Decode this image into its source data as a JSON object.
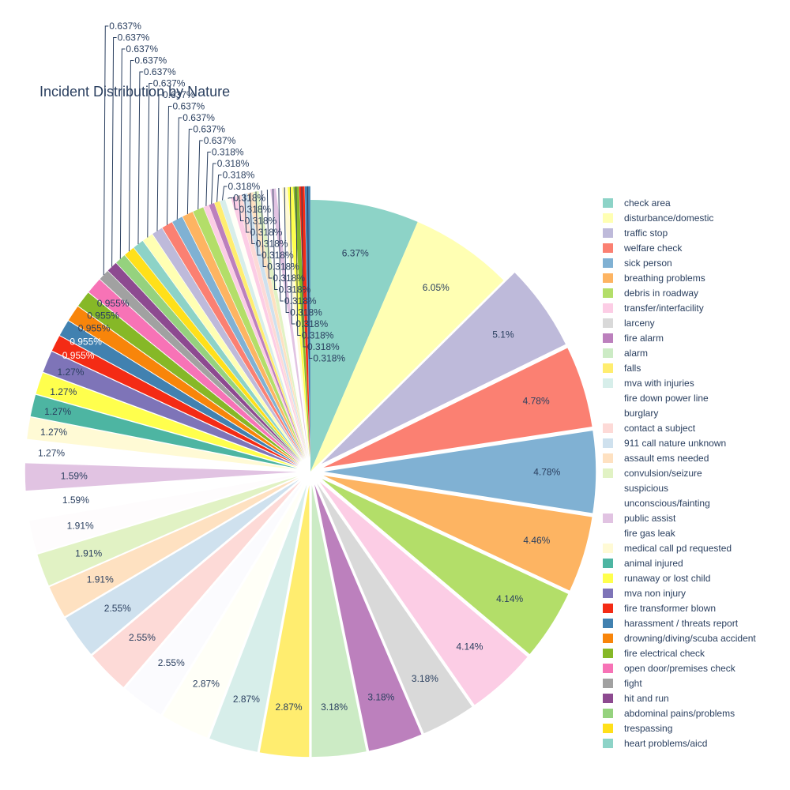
{
  "chart_data": {
    "type": "pie",
    "title": "Incident Distribution by Nature",
    "slices": [
      {
        "label": "check area",
        "value": 6.37,
        "text": "6.37%",
        "color": "#8DD3C7",
        "pull": 0
      },
      {
        "label": "disturbance/domestic",
        "value": 6.05,
        "text": "6.05%",
        "color": "#FFFFB3",
        "pull": 0
      },
      {
        "label": "traffic stop",
        "value": 5.1,
        "text": "5.1%",
        "color": "#BEBADA",
        "pull": 0.05
      },
      {
        "label": "welfare check",
        "value": 4.78,
        "text": "4.78%",
        "color": "#FB8072",
        "pull": 0.05
      },
      {
        "label": "sick person",
        "value": 4.78,
        "text": "4.78%",
        "color": "#80B1D3",
        "pull": 0.05
      },
      {
        "label": "breathing problems",
        "value": 4.46,
        "text": "4.46%",
        "color": "#FDB462",
        "pull": 0.05
      },
      {
        "label": "debris in roadway",
        "value": 4.14,
        "text": "4.14%",
        "color": "#B3DE69",
        "pull": 0.05
      },
      {
        "label": "transfer/interfacility",
        "value": 4.14,
        "text": "4.14%",
        "color": "#FCCDE5",
        "pull": 0.05
      },
      {
        "label": "larceny",
        "value": 3.18,
        "text": "3.18%",
        "color": "#D9D9D9",
        "pull": 0.05
      },
      {
        "label": "fire alarm",
        "value": 3.18,
        "text": "3.18%",
        "color": "#BC80BD",
        "pull": 0.05
      },
      {
        "label": "alarm",
        "value": 3.18,
        "text": "3.18%",
        "color": "#CCEBC5",
        "pull": 0.05
      },
      {
        "label": "falls",
        "value": 2.87,
        "text": "2.87%",
        "color": "#FFED6F",
        "pull": 0.05
      },
      {
        "label": "mva with injuries",
        "value": 2.87,
        "text": "2.87%",
        "color": "#D7EEEA",
        "pull": 0.05
      },
      {
        "label": "fire down power line",
        "value": 2.87,
        "text": "2.87%",
        "color": "#FFFFF7",
        "pull": 0.05
      },
      {
        "label": "burglary",
        "value": 2.55,
        "text": "2.55%",
        "color": "#FBFBFE",
        "pull": 0.05
      },
      {
        "label": "contact a subject",
        "value": 2.55,
        "text": "2.55%",
        "color": "#FDDAD7",
        "pull": 0.05
      },
      {
        "label": "911 call nature unknown",
        "value": 2.55,
        "text": "2.55%",
        "color": "#CFE1EE",
        "pull": 0.05
      },
      {
        "label": "assault ems needed",
        "value": 1.91,
        "text": "1.91%",
        "color": "#FEE1C1",
        "pull": 0.05
      },
      {
        "label": "convulsion/seizure",
        "value": 1.91,
        "text": "1.91%",
        "color": "#E1F2C4",
        "pull": 0.05
      },
      {
        "label": "suspicious",
        "value": 1.91,
        "text": "1.91%",
        "color": "#FEFCFD",
        "pull": 0.05
      },
      {
        "label": "unconscious/fainting",
        "value": 1.59,
        "text": "1.59%",
        "color": "#FFFFFF",
        "pull": 0.05
      },
      {
        "label": "public assist",
        "value": 1.59,
        "text": "1.59%",
        "color": "#E1C3E2",
        "pull": 0.05
      },
      {
        "label": "fire gas leak",
        "value": 1.27,
        "text": "1.27%",
        "color": "#FFFFFF",
        "pull": 0.05
      },
      {
        "label": "medical call pd requested",
        "value": 1.27,
        "text": "1.27%",
        "color": "#FFFAD5",
        "pull": 0.05
      },
      {
        "label": "animal injured",
        "value": 1.27,
        "text": "1.27%",
        "color": "#4DB5A2",
        "pull": 0.05
      },
      {
        "label": "runaway or lost child",
        "value": 1.27,
        "text": "1.27%",
        "color": "#FFFF4D",
        "pull": 0.05
      },
      {
        "label": "mva non injury",
        "value": 1.27,
        "text": "1.27%",
        "color": "#7E74B8",
        "pull": 0.05
      },
      {
        "label": "fire transformer blown",
        "value": 0.955,
        "text": "0.955%",
        "color": "#F42B15",
        "pull": 0.05
      },
      {
        "label": "harassment / threats report",
        "value": 0.955,
        "text": "0.955%",
        "color": "#4181B0",
        "pull": 0.05
      },
      {
        "label": "drowning/diving/scuba accident",
        "value": 0.955,
        "text": "0.955%",
        "color": "#F8850A",
        "pull": 0.05
      },
      {
        "label": "fire electrical check",
        "value": 0.955,
        "text": "0.955%",
        "color": "#86B827",
        "pull": 0.05
      },
      {
        "label": "open door/premises check",
        "value": 0.955,
        "text": "0.955%",
        "color": "#F773B6",
        "pull": 0.05
      },
      {
        "label": "fight",
        "value": 0.637,
        "text": "0.637%",
        "color": "#A1A1A1",
        "pull": 0.05
      },
      {
        "label": "hit and run",
        "value": 0.637,
        "text": "0.637%",
        "color": "#8D4A90",
        "pull": 0.05
      },
      {
        "label": "abdominal pains/problems",
        "value": 0.637,
        "text": "0.637%",
        "color": "#95D27E",
        "pull": 0.05
      },
      {
        "label": "trespassing",
        "value": 0.637,
        "text": "0.637%",
        "color": "#FFE01A",
        "pull": 0.05
      },
      {
        "label": "heart problems/aicd",
        "value": 0.637,
        "text": "0.637%",
        "color": "#8DD3C7",
        "pull": 0.05
      },
      {
        "label": "",
        "value": 0.637,
        "text": "0.637%",
        "color": "#FFFFB3",
        "pull": 0.05
      },
      {
        "label": "",
        "value": 0.637,
        "text": "0.637%",
        "color": "#BEBADA",
        "pull": 0.05
      },
      {
        "label": "",
        "value": 0.637,
        "text": "0.637%",
        "color": "#FB8072",
        "pull": 0.05
      },
      {
        "label": "",
        "value": 0.637,
        "text": "0.637%",
        "color": "#80B1D3",
        "pull": 0.05
      },
      {
        "label": "",
        "value": 0.637,
        "text": "0.637%",
        "color": "#FDB462",
        "pull": 0.05
      },
      {
        "label": "",
        "value": 0.637,
        "text": "0.637%",
        "color": "#B3DE69",
        "pull": 0.05
      },
      {
        "label": "",
        "value": 0.318,
        "text": "0.318%",
        "color": "#FCCDE5",
        "pull": 0.05
      },
      {
        "label": "",
        "value": 0.318,
        "text": "0.318%",
        "color": "#BC80BD",
        "pull": 0.05
      },
      {
        "label": "",
        "value": 0.318,
        "text": "0.318%",
        "color": "#FFED6F",
        "pull": 0.05
      },
      {
        "label": "",
        "value": 0.318,
        "text": "0.318%",
        "color": "#D7EEEA",
        "pull": 0.05
      },
      {
        "label": "",
        "value": 0.318,
        "text": "0.318%",
        "color": "#FFFFF7",
        "pull": 0.05
      },
      {
        "label": "",
        "value": 0.318,
        "text": "0.318%",
        "color": "#FCCDE5",
        "pull": 0.05
      },
      {
        "label": "",
        "value": 0.318,
        "text": "0.318%",
        "color": "#FDDAD7",
        "pull": 0.05
      },
      {
        "label": "",
        "value": 0.318,
        "text": "0.318%",
        "color": "#CFE1EE",
        "pull": 0.05
      },
      {
        "label": "",
        "value": 0.318,
        "text": "0.318%",
        "color": "#FEE1C1",
        "pull": 0.05
      },
      {
        "label": "",
        "value": 0.318,
        "text": "0.318%",
        "color": "#E1F2C4",
        "pull": 0.05
      },
      {
        "label": "",
        "value": 0.318,
        "text": "0.318%",
        "color": "#FEFCFD",
        "pull": 0.05
      },
      {
        "label": "",
        "value": 0.318,
        "text": "0.318%",
        "color": "#FFFFFF",
        "pull": 0.05
      },
      {
        "label": "",
        "value": 0.318,
        "text": "0.318%",
        "color": "#E1C3E2",
        "pull": 0.05
      },
      {
        "label": "",
        "value": 0.318,
        "text": "0.318%",
        "color": "#FFFFFF",
        "pull": 0.05
      },
      {
        "label": "",
        "value": 0.318,
        "text": "0.318%",
        "color": "#FFFAD5",
        "pull": 0.05
      },
      {
        "label": "",
        "value": 0.318,
        "text": "0.318%",
        "color": "#FFFF4D",
        "pull": 0.05
      },
      {
        "label": "",
        "value": 0.318,
        "text": "0.318%",
        "color": "#86B827",
        "pull": 0.05
      },
      {
        "label": "",
        "value": 0.318,
        "text": "0.318%",
        "color": "#F42B15",
        "pull": 0.05
      },
      {
        "label": "",
        "value": 0.318,
        "text": "0.318%",
        "color": "#4181B0",
        "pull": 0.05
      }
    ],
    "legend": {
      "placement": "right",
      "items": [
        {
          "label": "check area",
          "color": "#8DD3C7"
        },
        {
          "label": "disturbance/domestic",
          "color": "#FFFFB3"
        },
        {
          "label": "traffic stop",
          "color": "#BEBADA"
        },
        {
          "label": "welfare check",
          "color": "#FB8072"
        },
        {
          "label": "sick person",
          "color": "#80B1D3"
        },
        {
          "label": "breathing problems",
          "color": "#FDB462"
        },
        {
          "label": "debris in roadway",
          "color": "#B3DE69"
        },
        {
          "label": "transfer/interfacility",
          "color": "#FCCDE5"
        },
        {
          "label": "larceny",
          "color": "#D9D9D9"
        },
        {
          "label": "fire alarm",
          "color": "#BC80BD"
        },
        {
          "label": "alarm",
          "color": "#CCEBC5"
        },
        {
          "label": "falls",
          "color": "#FFED6F"
        },
        {
          "label": "mva with injuries",
          "color": "#D7EEEA"
        },
        {
          "label": "fire down power line",
          "color": "#FFFFFF"
        },
        {
          "label": "burglary",
          "color": "#FFFFFF"
        },
        {
          "label": "contact a subject",
          "color": "#FDDAD7"
        },
        {
          "label": "911 call nature unknown",
          "color": "#CFE1EE"
        },
        {
          "label": "assault ems needed",
          "color": "#FEE1C1"
        },
        {
          "label": "convulsion/seizure",
          "color": "#E1F2C4"
        },
        {
          "label": "suspicious",
          "color": "#FFFFFF"
        },
        {
          "label": "unconscious/fainting",
          "color": "#FFFFFF"
        },
        {
          "label": "public assist",
          "color": "#E1C3E2"
        },
        {
          "label": "fire gas leak",
          "color": "#FFFFFF"
        },
        {
          "label": "medical call pd requested",
          "color": "#FFFAD5"
        },
        {
          "label": "animal injured",
          "color": "#4DB5A2"
        },
        {
          "label": "runaway or lost child",
          "color": "#FFFF4D"
        },
        {
          "label": "mva non injury",
          "color": "#7E74B8"
        },
        {
          "label": "fire transformer blown",
          "color": "#F42B15"
        },
        {
          "label": "harassment / threats report",
          "color": "#4181B0"
        },
        {
          "label": "drowning/diving/scuba accident",
          "color": "#F8850A"
        },
        {
          "label": "fire electrical check",
          "color": "#86B827"
        },
        {
          "label": "open door/premises check",
          "color": "#F773B6"
        },
        {
          "label": "fight",
          "color": "#A1A1A1"
        },
        {
          "label": "hit and run",
          "color": "#8D4A90"
        },
        {
          "label": "abdominal pains/problems",
          "color": "#95D27E"
        },
        {
          "label": "trespassing",
          "color": "#FFE01A"
        },
        {
          "label": "heart problems/aicd",
          "color": "#8DD3C7"
        }
      ]
    }
  }
}
